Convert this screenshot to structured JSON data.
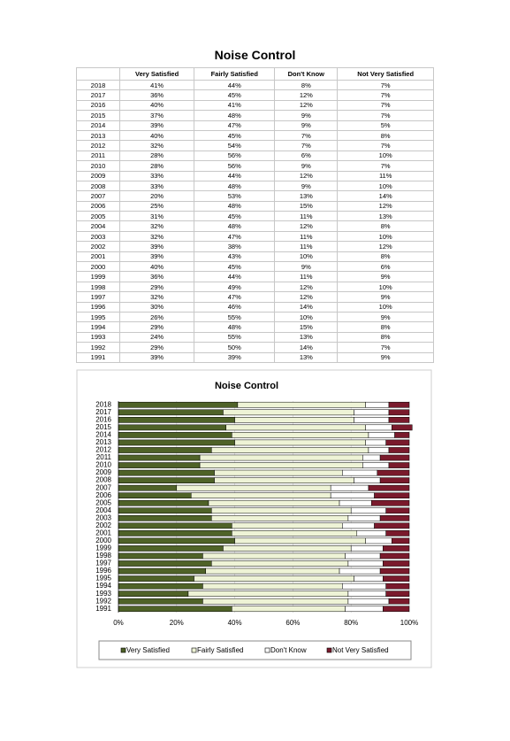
{
  "title": "Noise Control",
  "table": {
    "columns": [
      "Very Satisfied",
      "Fairly Satisfied",
      "Don't Know",
      "Not Very Satisfied"
    ],
    "rows": [
      [
        "2018",
        "41%",
        "44%",
        "8%",
        "7%"
      ],
      [
        "2017",
        "36%",
        "45%",
        "12%",
        "7%"
      ],
      [
        "2016",
        "40%",
        "41%",
        "12%",
        "7%"
      ],
      [
        "2015",
        "37%",
        "48%",
        "9%",
        "7%"
      ],
      [
        "2014",
        "39%",
        "47%",
        "9%",
        "5%"
      ],
      [
        "2013",
        "40%",
        "45%",
        "7%",
        "8%"
      ],
      [
        "2012",
        "32%",
        "54%",
        "7%",
        "7%"
      ],
      [
        "2011",
        "28%",
        "56%",
        "6%",
        "10%"
      ],
      [
        "2010",
        "28%",
        "56%",
        "9%",
        "7%"
      ],
      [
        "2009",
        "33%",
        "44%",
        "12%",
        "11%"
      ],
      [
        "2008",
        "33%",
        "48%",
        "9%",
        "10%"
      ],
      [
        "2007",
        "20%",
        "53%",
        "13%",
        "14%"
      ],
      [
        "2006",
        "25%",
        "48%",
        "15%",
        "12%"
      ],
      [
        "2005",
        "31%",
        "45%",
        "11%",
        "13%"
      ],
      [
        "2004",
        "32%",
        "48%",
        "12%",
        "8%"
      ],
      [
        "2003",
        "32%",
        "47%",
        "11%",
        "10%"
      ],
      [
        "2002",
        "39%",
        "38%",
        "11%",
        "12%"
      ],
      [
        "2001",
        "39%",
        "43%",
        "10%",
        "8%"
      ],
      [
        "2000",
        "40%",
        "45%",
        "9%",
        "6%"
      ],
      [
        "1999",
        "36%",
        "44%",
        "11%",
        "9%"
      ],
      [
        "1998",
        "29%",
        "49%",
        "12%",
        "10%"
      ],
      [
        "1997",
        "32%",
        "47%",
        "12%",
        "9%"
      ],
      [
        "1996",
        "30%",
        "46%",
        "14%",
        "10%"
      ],
      [
        "1995",
        "26%",
        "55%",
        "10%",
        "9%"
      ],
      [
        "1994",
        "29%",
        "48%",
        "15%",
        "8%"
      ],
      [
        "1993",
        "24%",
        "55%",
        "13%",
        "8%"
      ],
      [
        "1992",
        "29%",
        "50%",
        "14%",
        "7%"
      ],
      [
        "1991",
        "39%",
        "39%",
        "13%",
        "9%"
      ]
    ]
  },
  "chart_data": {
    "type": "stacked-bar-horizontal",
    "title": "Noise Control",
    "categories": [
      "2018",
      "2017",
      "2016",
      "2015",
      "2014",
      "2013",
      "2012",
      "2011",
      "2010",
      "2009",
      "2008",
      "2007",
      "2006",
      "2005",
      "2004",
      "2003",
      "2002",
      "2001",
      "2000",
      "1999",
      "1998",
      "1997",
      "1996",
      "1995",
      "1994",
      "1993",
      "1992",
      "1991"
    ],
    "series": [
      {
        "name": "Very Satisfied",
        "color": "#4f6228",
        "values": [
          41,
          36,
          40,
          37,
          39,
          40,
          32,
          28,
          28,
          33,
          33,
          20,
          25,
          31,
          32,
          32,
          39,
          39,
          40,
          36,
          29,
          32,
          30,
          26,
          29,
          24,
          29,
          39
        ]
      },
      {
        "name": "Fairly Satisfied",
        "color": "#eef3d6",
        "values": [
          44,
          45,
          41,
          48,
          47,
          45,
          54,
          56,
          56,
          44,
          48,
          53,
          48,
          45,
          48,
          47,
          38,
          43,
          45,
          44,
          49,
          47,
          46,
          55,
          48,
          55,
          50,
          39
        ]
      },
      {
        "name": "Don't Know",
        "color": "#ffffff",
        "values": [
          8,
          12,
          12,
          9,
          9,
          7,
          7,
          6,
          9,
          12,
          9,
          13,
          15,
          11,
          12,
          11,
          11,
          10,
          9,
          11,
          12,
          12,
          14,
          10,
          15,
          13,
          14,
          13
        ]
      },
      {
        "name": "Not Very Satisfied",
        "color": "#7a1a2c",
        "values": [
          7,
          7,
          7,
          7,
          5,
          8,
          7,
          10,
          7,
          11,
          10,
          14,
          12,
          13,
          8,
          10,
          12,
          8,
          6,
          9,
          10,
          9,
          10,
          9,
          8,
          8,
          7,
          9
        ]
      }
    ],
    "xlim": [
      0,
      100
    ],
    "xticks": [
      {
        "value": 0,
        "label": "0%"
      },
      {
        "value": 20,
        "label": "20%"
      },
      {
        "value": 40,
        "label": "40%"
      },
      {
        "value": 60,
        "label": "60%"
      },
      {
        "value": 80,
        "label": "80%"
      },
      {
        "value": 100,
        "label": "100%"
      }
    ],
    "grid": true,
    "legend": "bottom"
  }
}
